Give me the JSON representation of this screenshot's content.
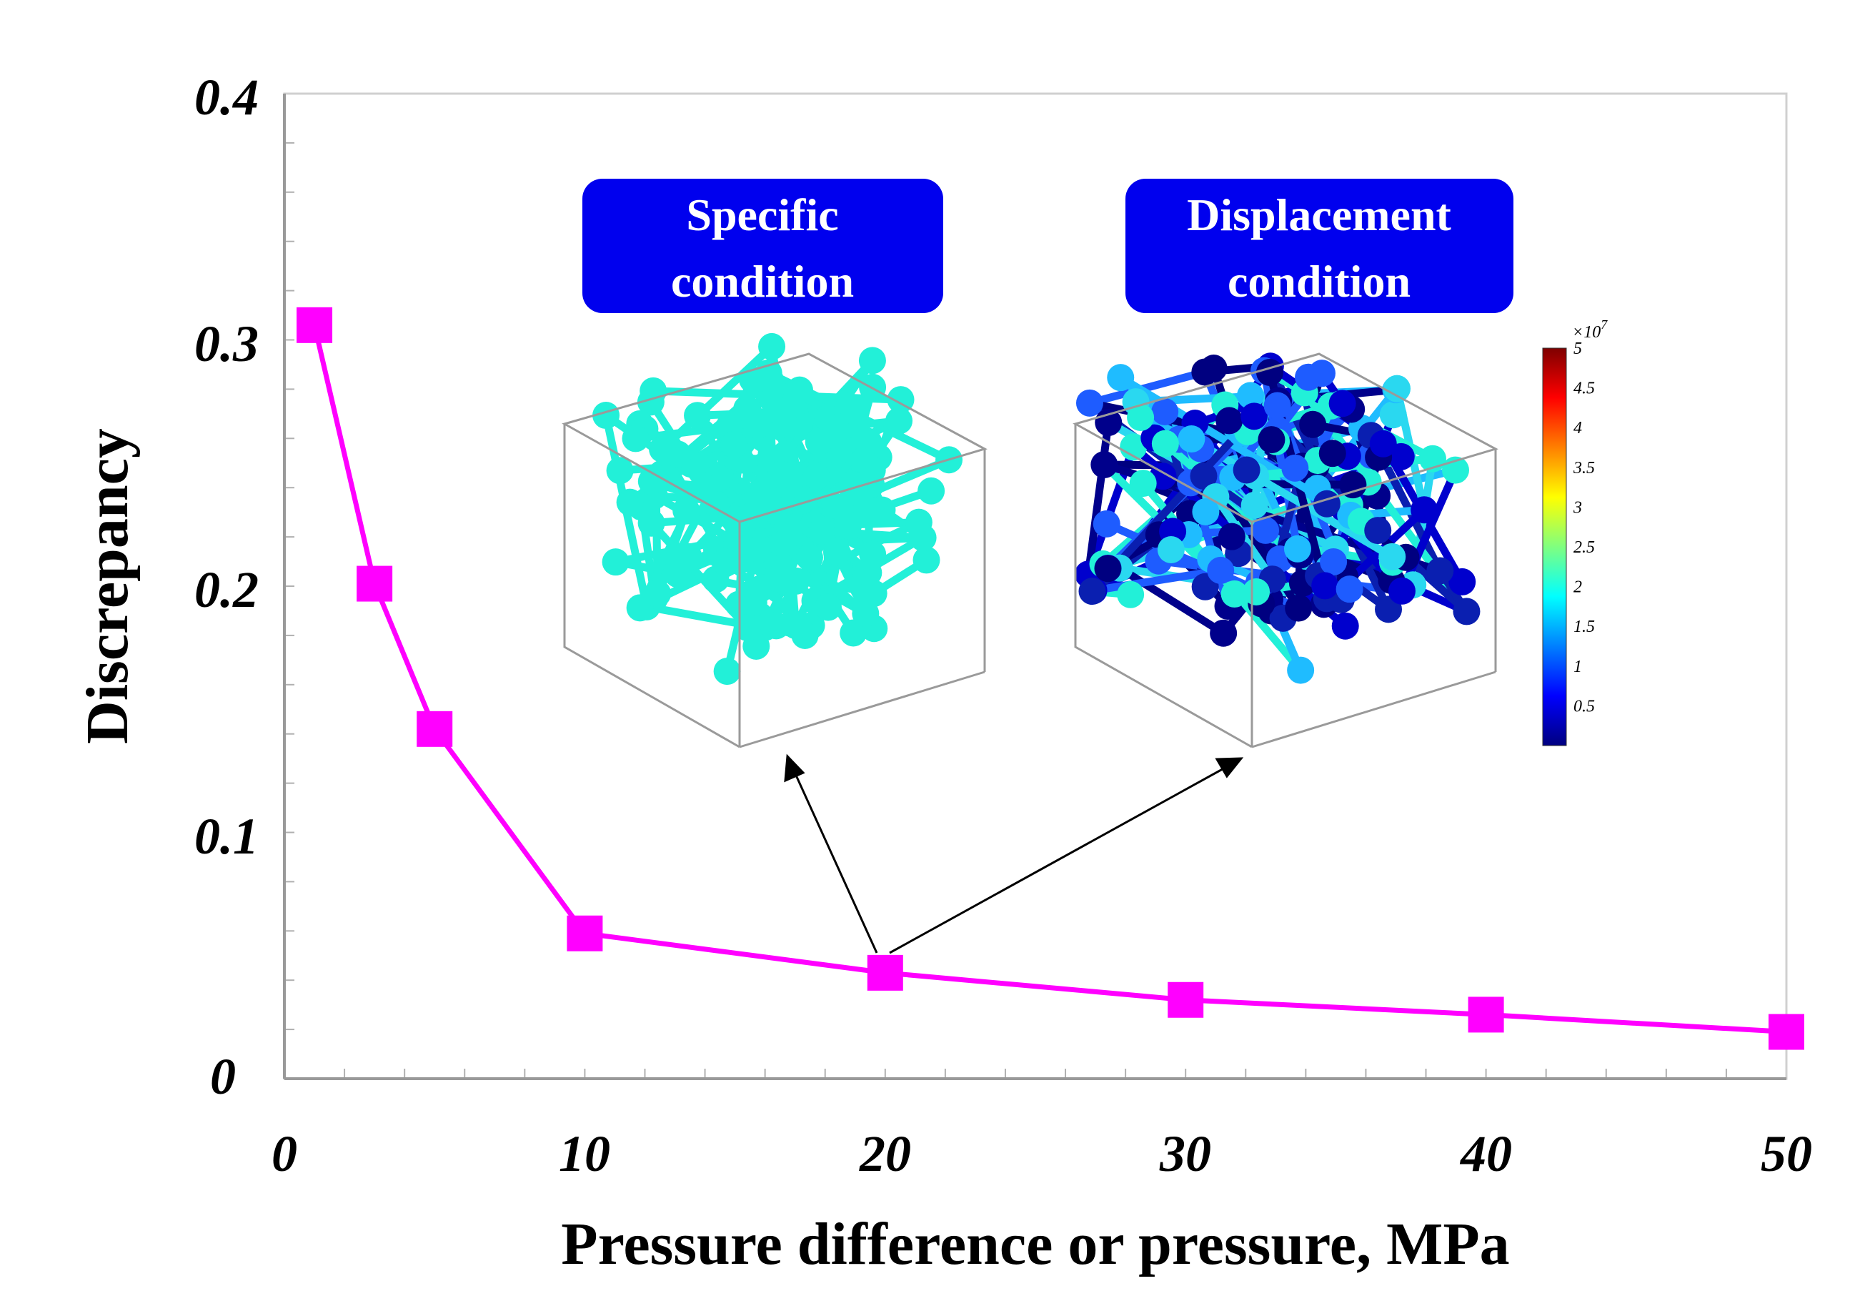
{
  "chart_data": {
    "type": "line",
    "title": "",
    "xlabel": "Pressure difference or pressure, MPa",
    "ylabel": "Discrepancy",
    "xlim": [
      0,
      50
    ],
    "ylim": [
      0,
      0.4
    ],
    "xticks": [
      "0",
      "10",
      "20",
      "30",
      "40",
      "50"
    ],
    "yticks": [
      "0",
      "0.1",
      "0.2",
      "0.3",
      "0.4"
    ],
    "grid": false,
    "legend": "none",
    "series": [
      {
        "color": "#ff00ff",
        "marker": "square",
        "x": [
          1,
          3,
          5,
          10,
          20,
          30,
          40,
          50
        ],
        "y": [
          0.306,
          0.201,
          0.142,
          0.059,
          0.043,
          0.032,
          0.026,
          0.019
        ]
      }
    ]
  },
  "insets": {
    "left_badge": [
      "Specific",
      "condition"
    ],
    "right_badge": [
      "Displacement",
      "condition"
    ],
    "badge_color": "#0000ee",
    "colorbar": {
      "exponent_label": "×10",
      "exponent": "7",
      "labels": [
        "5",
        "4.5",
        "4",
        "3.5",
        "3",
        "2.5",
        "2",
        "1.5",
        "1",
        "0.5"
      ]
    }
  }
}
